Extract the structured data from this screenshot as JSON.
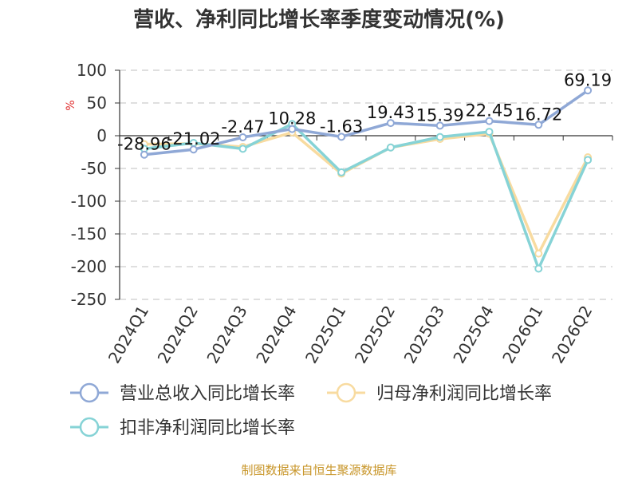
{
  "chart_data": {
    "type": "line",
    "title": "营收、净利同比增长率季度变动情况(%)",
    "ylabel": "%",
    "categories": [
      "2024Q1",
      "2024Q2",
      "2024Q3",
      "2024Q4",
      "2025Q1",
      "2025Q2",
      "2025Q3",
      "2025Q4",
      "2026Q1",
      "2026Q2"
    ],
    "ylim": [
      -250,
      100
    ],
    "yticks": [
      100,
      50,
      0,
      -50,
      -100,
      -150,
      -200,
      -250
    ],
    "grid": true,
    "legend_position": "bottom-left",
    "series": [
      {
        "name": "营业总收入同比增长率",
        "color": "#8fa8d6",
        "values": [
          -28.96,
          -21.02,
          -2.47,
          10.28,
          -1.63,
          19.43,
          15.39,
          22.45,
          16.72,
          69.19
        ],
        "labels": [
          "-28.96",
          "-21.02",
          "-2.47",
          "10.28",
          "-1.63",
          "19.43",
          "15.39",
          "22.45",
          "16.72",
          "69.19"
        ]
      },
      {
        "name": "归母净利润同比增长率",
        "color": "#f8dba0",
        "values": [
          -13,
          -12,
          -17,
          5,
          -58,
          -18,
          -5,
          3,
          -180,
          -33
        ]
      },
      {
        "name": "扣非净利润同比增长率",
        "color": "#86d3d6",
        "values": [
          -20,
          -11,
          -20,
          18,
          -56,
          -18,
          -2,
          6,
          -203,
          -37
        ]
      }
    ]
  },
  "source": "制图数据来自恒生聚源数据库"
}
